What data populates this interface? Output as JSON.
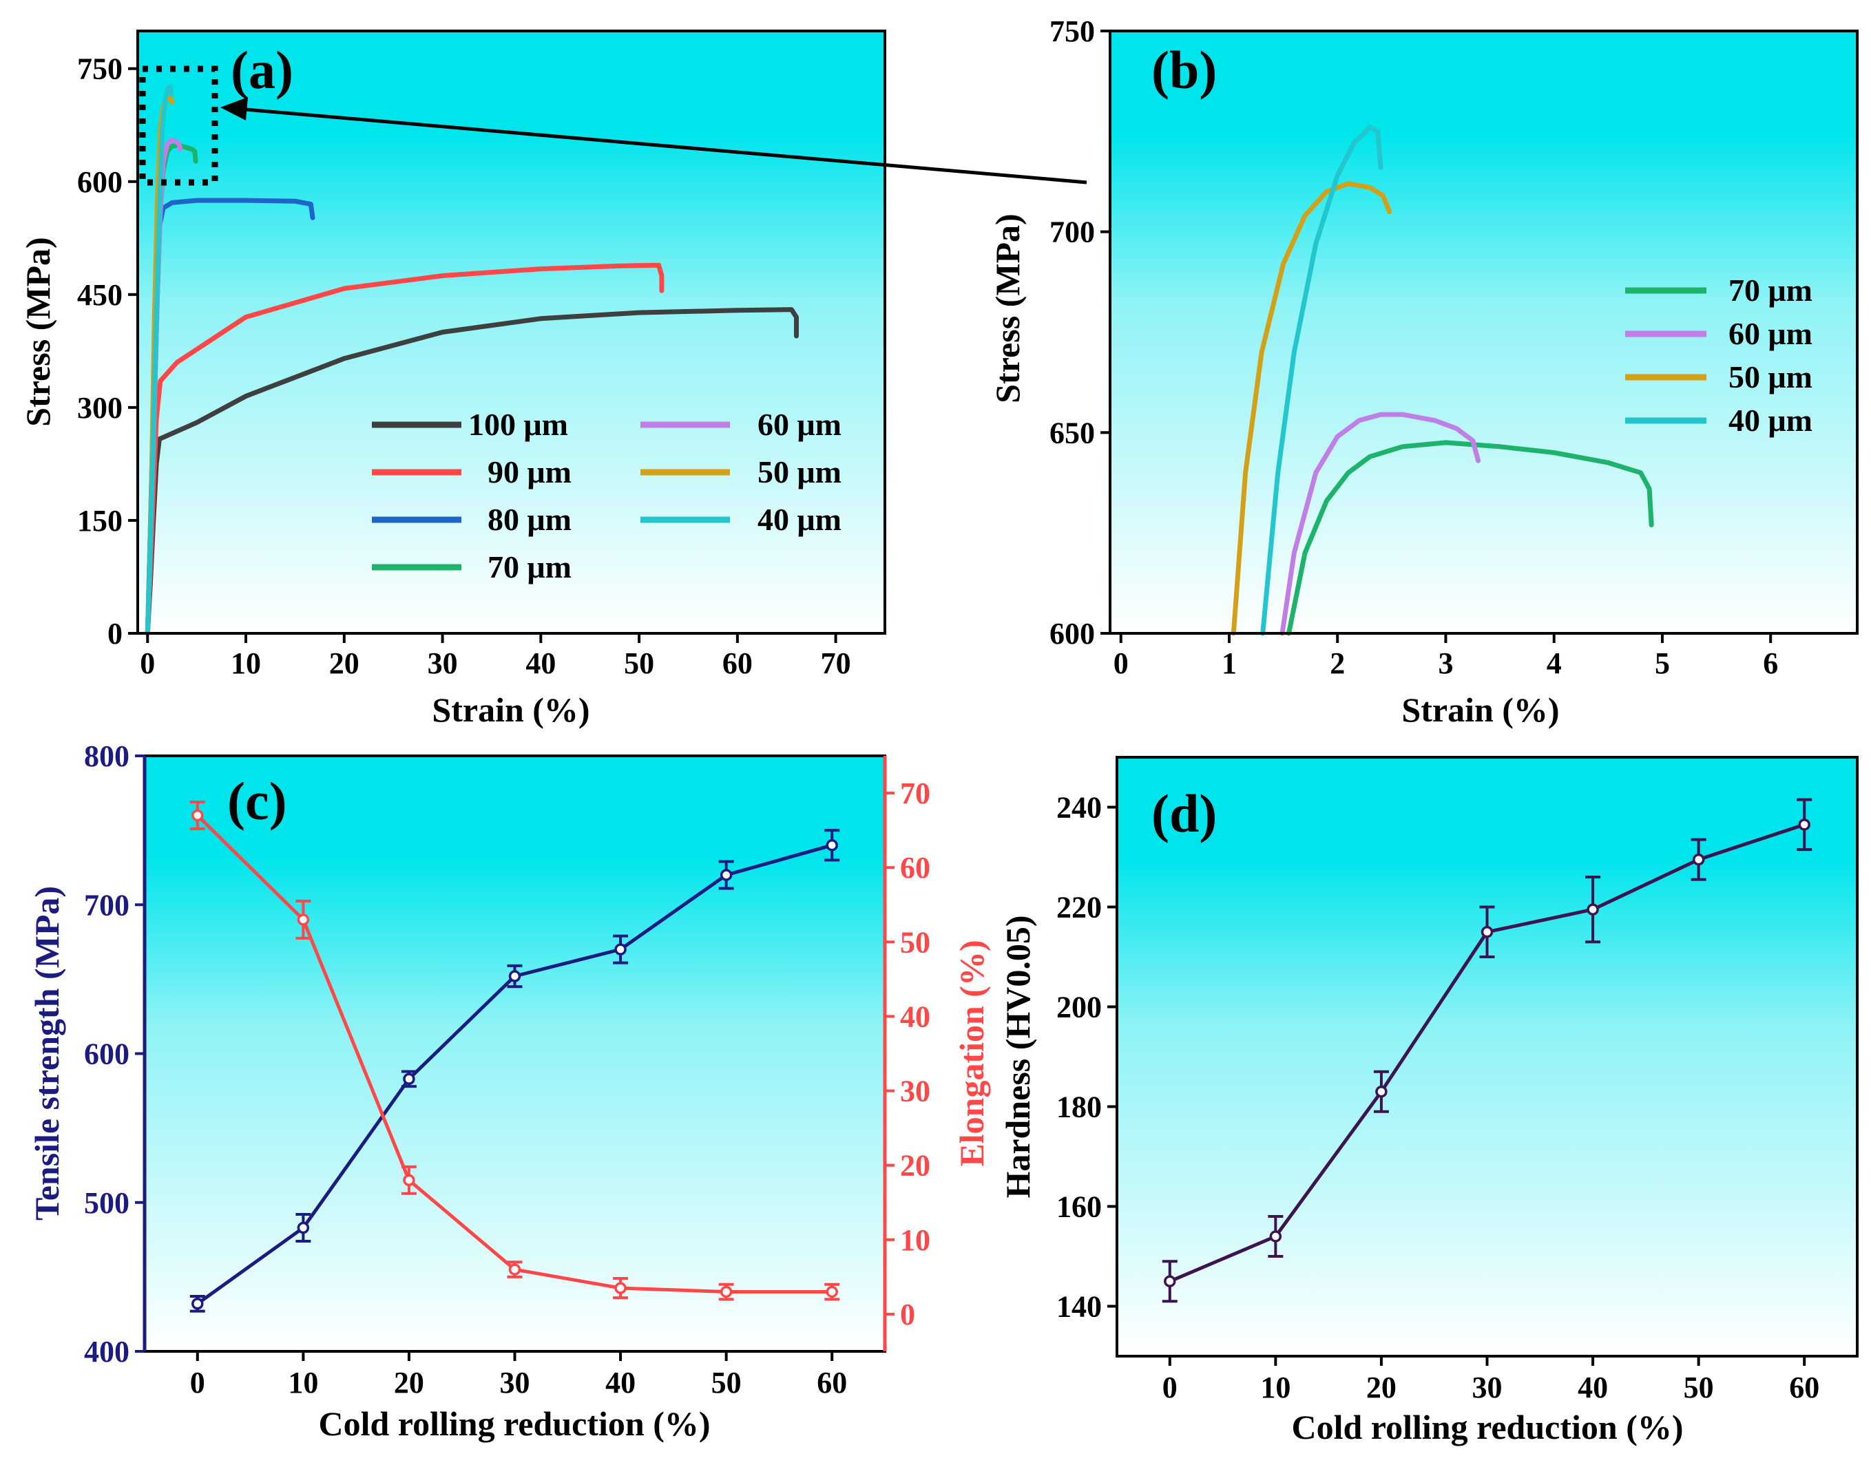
{
  "chart_data": [
    {
      "id": "a",
      "type": "line",
      "panel_label": "(a)",
      "xlabel": "Strain (%)",
      "ylabel": "Stress (MPa)",
      "xlim": [
        -1,
        75
      ],
      "ylim": [
        0,
        800
      ],
      "xticks": [
        0,
        10,
        20,
        30,
        40,
        50,
        60,
        70
      ],
      "yticks": [
        0,
        150,
        300,
        450,
        600,
        750
      ],
      "legend": {
        "position": "bottom-right",
        "columns": 2
      },
      "series": [
        {
          "name": "100 μm",
          "color": "#3f3f3f",
          "x": [
            0,
            0.3,
            0.6,
            0.9,
            1.2,
            5,
            10,
            20,
            30,
            40,
            50,
            60,
            65.5,
            66,
            66
          ],
          "y": [
            0,
            70,
            150,
            225,
            258,
            280,
            315,
            365,
            400,
            418,
            426,
            429,
            430,
            420,
            395
          ]
        },
        {
          "name": "90 μm",
          "color": "#ff4747",
          "x": [
            0,
            0.3,
            0.6,
            0.9,
            1.3,
            3,
            10,
            20,
            30,
            40,
            48,
            52,
            52.3,
            52.3
          ],
          "y": [
            0,
            90,
            190,
            285,
            335,
            360,
            420,
            458,
            475,
            484,
            488,
            489,
            475,
            455
          ]
        },
        {
          "name": "80 μm",
          "color": "#1f64c8",
          "x": [
            0,
            0.3,
            0.6,
            0.9,
            1.2,
            1.6,
            2.5,
            5,
            10,
            15,
            16.6,
            16.8
          ],
          "y": [
            0,
            150,
            310,
            460,
            540,
            565,
            572,
            575,
            575,
            574,
            570,
            552
          ]
        },
        {
          "name": "70 μm",
          "color": "#1db36b",
          "x": [
            0,
            0.6,
            1.0,
            1.3,
            1.6,
            2.0,
            2.5,
            3.0,
            3.5,
            4.0,
            4.5,
            4.8,
            4.9
          ],
          "y": [
            0,
            250,
            450,
            560,
            615,
            640,
            647,
            648,
            647,
            645,
            643,
            640,
            627
          ]
        },
        {
          "name": "60 μm",
          "color": "#c07ee6",
          "x": [
            0,
            0.6,
            1.0,
            1.3,
            1.6,
            2.0,
            2.4,
            2.8,
            3.2,
            3.3
          ],
          "y": [
            0,
            250,
            450,
            560,
            625,
            650,
            655,
            654,
            650,
            643
          ]
        },
        {
          "name": "50 μm",
          "color": "#d4a017",
          "x": [
            0,
            0.4,
            0.7,
            1.0,
            1.3,
            1.6,
            2.0,
            2.2,
            2.4,
            2.5
          ],
          "y": [
            0,
            200,
            420,
            580,
            670,
            700,
            711,
            712,
            710,
            705
          ]
        },
        {
          "name": "40 μm",
          "color": "#22c6cc",
          "x": [
            0,
            0.5,
            0.9,
            1.2,
            1.5,
            1.8,
            2.1,
            2.3,
            2.35,
            2.4
          ],
          "y": [
            0,
            220,
            420,
            560,
            670,
            710,
            724,
            726,
            724,
            716
          ]
        }
      ]
    },
    {
      "id": "b",
      "type": "line",
      "panel_label": "(b)",
      "xlabel": "Strain (%)",
      "ylabel": "Stress (MPa)",
      "xlim": [
        -0.1,
        6.8
      ],
      "ylim": [
        600,
        750
      ],
      "xticks": [
        0,
        1,
        2,
        3,
        4,
        5,
        6
      ],
      "yticks": [
        600,
        650,
        700,
        750
      ],
      "legend": {
        "position": "right"
      },
      "series": [
        {
          "name": "70 μm",
          "color": "#1db36b",
          "x": [
            1.55,
            1.7,
            1.9,
            2.1,
            2.3,
            2.6,
            3.0,
            3.5,
            4.0,
            4.5,
            4.8,
            4.88,
            4.9
          ],
          "y": [
            600,
            620,
            633,
            640,
            644,
            646.5,
            647.5,
            646.5,
            645,
            642.5,
            640,
            636,
            627
          ]
        },
        {
          "name": "60 μm",
          "color": "#c07ee6",
          "x": [
            1.49,
            1.6,
            1.8,
            2.0,
            2.2,
            2.4,
            2.6,
            2.9,
            3.1,
            3.25,
            3.3
          ],
          "y": [
            600,
            620,
            640,
            649,
            653,
            654.5,
            654.5,
            653,
            651,
            648,
            643
          ]
        },
        {
          "name": "50 μm",
          "color": "#d4a017",
          "x": [
            1.04,
            1.15,
            1.3,
            1.5,
            1.7,
            1.9,
            2.1,
            2.3,
            2.42,
            2.48
          ],
          "y": [
            600,
            640,
            670,
            692,
            704,
            710,
            712,
            711,
            709,
            705
          ]
        },
        {
          "name": "40 μm",
          "color": "#22c6cc",
          "x": [
            1.31,
            1.45,
            1.6,
            1.8,
            2.0,
            2.15,
            2.3,
            2.37,
            2.4
          ],
          "y": [
            600,
            640,
            670,
            697,
            714,
            722,
            726,
            725,
            716
          ]
        }
      ]
    },
    {
      "id": "c",
      "type": "line",
      "panel_label": "(c)",
      "xlabel": "Cold rolling reduction (%)",
      "ylabel_left": "Tensile strength (MPa)",
      "ylabel_right": "Elongation (%)",
      "xlim": [
        -5,
        65
      ],
      "ylim_left": [
        400,
        800
      ],
      "ylim_right": [
        -5,
        75
      ],
      "xticks": [
        0,
        10,
        20,
        30,
        40,
        50,
        60
      ],
      "yticks_left": [
        400,
        500,
        600,
        700,
        800
      ],
      "yticks_right": [
        0,
        10,
        20,
        30,
        40,
        50,
        60,
        70
      ],
      "series": [
        {
          "name": "Tensile strength",
          "axis": "left",
          "color": "#1c1c80",
          "x": [
            0,
            10,
            20,
            30,
            40,
            50,
            60
          ],
          "y": [
            432,
            483,
            583,
            652,
            670,
            720,
            740
          ],
          "err": [
            5,
            9,
            5,
            7,
            9,
            9,
            10
          ]
        },
        {
          "name": "Elongation",
          "axis": "right",
          "color": "#ff4747",
          "x": [
            0,
            10,
            20,
            30,
            40,
            50,
            60
          ],
          "y": [
            67,
            53,
            18,
            6,
            3.5,
            3,
            3
          ],
          "err": [
            1.8,
            2.5,
            1.8,
            1,
            1.3,
            1,
            1
          ]
        }
      ]
    },
    {
      "id": "d",
      "type": "line",
      "panel_label": "(d)",
      "xlabel": "Cold rolling reduction (%)",
      "ylabel": "Hardness (HV0.05)",
      "xlim": [
        -5,
        65
      ],
      "ylim": [
        130,
        250
      ],
      "xticks": [
        0,
        10,
        20,
        30,
        40,
        50,
        60
      ],
      "yticks": [
        140,
        160,
        180,
        200,
        220,
        240
      ],
      "series": [
        {
          "name": "Hardness",
          "color": "#3d1450",
          "x": [
            0,
            10,
            20,
            30,
            40,
            50,
            60
          ],
          "y": [
            145,
            154,
            183,
            215,
            219.5,
            229.5,
            236.5
          ],
          "err": [
            4,
            4,
            4,
            5,
            6.5,
            4,
            5
          ]
        }
      ]
    }
  ]
}
